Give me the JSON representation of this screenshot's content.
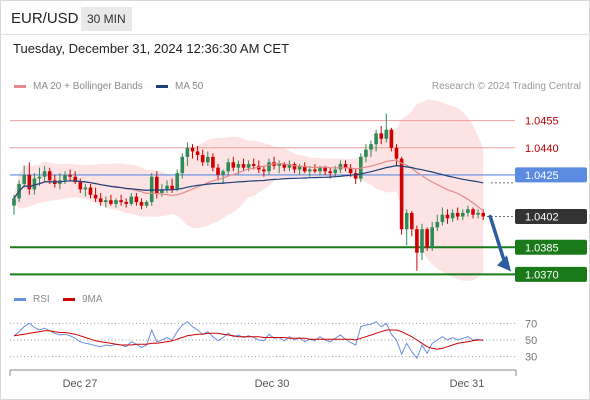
{
  "header": {
    "symbol": "EUR/USD",
    "timeframe": "30 MIN",
    "timestamp": "Tuesday, December 31, 2024 12:36:30 AM CET"
  },
  "legend": {
    "ma20": "MA 20 + Bollinger Bands",
    "ma50": "MA 50",
    "credit": "Research © 2024 Trading Central",
    "rsi": "RSI",
    "nine_ma": "9MA"
  },
  "colors": {
    "candle_up": "#2e8b57",
    "candle_down": "#d10000",
    "ma20": "#e68a8a",
    "ma50": "#1e3f7a",
    "band_fill": "#fde3e3",
    "resistance": "#f0a0a0",
    "support": "#1a7a1a",
    "current_line": "#5b8be0",
    "rsi_line": "#6a8fe0",
    "rsi_ma": "#d10000",
    "arrow": "#2c5d9c"
  },
  "chart_data": {
    "type": "candlestick",
    "instrument": "EUR/USD",
    "timeframe_minutes": 30,
    "x_labels": [
      "Dec 27",
      "Dec 30",
      "Dec 31"
    ],
    "ylim": [
      1.0368,
      1.0462
    ],
    "candles": [
      [
        1.0408,
        1.0414,
        1.0403,
        1.0412
      ],
      [
        1.0412,
        1.0422,
        1.041,
        1.042
      ],
      [
        1.042,
        1.043,
        1.0418,
        1.0425
      ],
      [
        1.0425,
        1.0432,
        1.0414,
        1.0417
      ],
      [
        1.0417,
        1.0426,
        1.0414,
        1.0423
      ],
      [
        1.0423,
        1.0429,
        1.0419,
        1.0424
      ],
      [
        1.0424,
        1.043,
        1.0421,
        1.0427
      ],
      [
        1.0427,
        1.0429,
        1.042,
        1.0422
      ],
      [
        1.0422,
        1.0425,
        1.0418,
        1.042
      ],
      [
        1.042,
        1.0426,
        1.0417,
        1.0422
      ],
      [
        1.0422,
        1.0427,
        1.042,
        1.0425
      ],
      [
        1.0425,
        1.0428,
        1.0422,
        1.0424
      ],
      [
        1.0424,
        1.0427,
        1.042,
        1.0421
      ],
      [
        1.0421,
        1.0423,
        1.0415,
        1.0417
      ],
      [
        1.0417,
        1.042,
        1.0413,
        1.0418
      ],
      [
        1.0418,
        1.042,
        1.0412,
        1.0414
      ],
      [
        1.0414,
        1.0418,
        1.041,
        1.0412
      ],
      [
        1.0412,
        1.0415,
        1.0408,
        1.041
      ],
      [
        1.041,
        1.0413,
        1.0407,
        1.0411
      ],
      [
        1.0411,
        1.0414,
        1.0408,
        1.0409
      ],
      [
        1.0409,
        1.0412,
        1.0407,
        1.0411
      ],
      [
        1.0411,
        1.0414,
        1.0408,
        1.041
      ],
      [
        1.041,
        1.0412,
        1.0407,
        1.0409
      ],
      [
        1.0409,
        1.0415,
        1.0408,
        1.0413
      ],
      [
        1.0413,
        1.0415,
        1.0408,
        1.041
      ],
      [
        1.041,
        1.0412,
        1.0406,
        1.0408
      ],
      [
        1.0408,
        1.0411,
        1.0407,
        1.041
      ],
      [
        1.041,
        1.0426,
        1.0408,
        1.0424
      ],
      [
        1.0424,
        1.0427,
        1.0412,
        1.0415
      ],
      [
        1.0415,
        1.042,
        1.0413,
        1.0417
      ],
      [
        1.0417,
        1.0422,
        1.0415,
        1.0419
      ],
      [
        1.0419,
        1.0423,
        1.0415,
        1.0417
      ],
      [
        1.0417,
        1.0428,
        1.0416,
        1.0426
      ],
      [
        1.0426,
        1.0437,
        1.0423,
        1.0435
      ],
      [
        1.0435,
        1.0443,
        1.043,
        1.044
      ],
      [
        1.044,
        1.0442,
        1.0434,
        1.0438
      ],
      [
        1.0438,
        1.0441,
        1.0433,
        1.0436
      ],
      [
        1.0436,
        1.0439,
        1.043,
        1.0432
      ],
      [
        1.0432,
        1.0438,
        1.043,
        1.0435
      ],
      [
        1.0435,
        1.0437,
        1.0427,
        1.0429
      ],
      [
        1.0429,
        1.0431,
        1.0422,
        1.0425
      ],
      [
        1.0425,
        1.0428,
        1.042,
        1.0427
      ],
      [
        1.0427,
        1.0434,
        1.0425,
        1.0432
      ],
      [
        1.0432,
        1.0435,
        1.0427,
        1.0429
      ],
      [
        1.0429,
        1.0433,
        1.0425,
        1.0431
      ],
      [
        1.0431,
        1.0434,
        1.0427,
        1.0429
      ],
      [
        1.0429,
        1.0433,
        1.0427,
        1.0431
      ],
      [
        1.0431,
        1.0434,
        1.0428,
        1.043
      ],
      [
        1.043,
        1.0433,
        1.0426,
        1.0428
      ],
      [
        1.0428,
        1.043,
        1.0424,
        1.0427
      ],
      [
        1.0427,
        1.0434,
        1.0425,
        1.0432
      ],
      [
        1.0432,
        1.0435,
        1.0428,
        1.043
      ],
      [
        1.043,
        1.0433,
        1.0426,
        1.0431
      ],
      [
        1.0431,
        1.0432,
        1.0427,
        1.0429
      ],
      [
        1.0429,
        1.0433,
        1.0427,
        1.0431
      ],
      [
        1.0431,
        1.0432,
        1.0426,
        1.0428
      ],
      [
        1.0428,
        1.0431,
        1.0425,
        1.043
      ],
      [
        1.043,
        1.0432,
        1.0426,
        1.0427
      ],
      [
        1.0427,
        1.043,
        1.0424,
        1.0428
      ],
      [
        1.0428,
        1.0431,
        1.0426,
        1.0427
      ],
      [
        1.0427,
        1.043,
        1.0425,
        1.0429
      ],
      [
        1.0429,
        1.043,
        1.0425,
        1.0427
      ],
      [
        1.0427,
        1.0429,
        1.0423,
        1.0426
      ],
      [
        1.0426,
        1.043,
        1.0424,
        1.0428
      ],
      [
        1.0428,
        1.0433,
        1.0426,
        1.0431
      ],
      [
        1.0431,
        1.0433,
        1.0427,
        1.0429
      ],
      [
        1.0429,
        1.0431,
        1.0424,
        1.0426
      ],
      [
        1.0426,
        1.0428,
        1.042,
        1.0423
      ],
      [
        1.0423,
        1.0437,
        1.0421,
        1.0435
      ],
      [
        1.0435,
        1.0442,
        1.0432,
        1.0439
      ],
      [
        1.0439,
        1.0444,
        1.0435,
        1.0442
      ],
      [
        1.0442,
        1.045,
        1.0438,
        1.0448
      ],
      [
        1.0448,
        1.0452,
        1.0442,
        1.0445
      ],
      [
        1.0445,
        1.0459,
        1.0443,
        1.045
      ],
      [
        1.045,
        1.0451,
        1.0438,
        1.044
      ],
      [
        1.044,
        1.0442,
        1.043,
        1.0434
      ],
      [
        1.0434,
        1.0435,
        1.0392,
        1.0395
      ],
      [
        1.0395,
        1.0406,
        1.0386,
        1.0404
      ],
      [
        1.0404,
        1.0405,
        1.0391,
        1.0395
      ],
      [
        1.0395,
        1.0397,
        1.0372,
        1.0382
      ],
      [
        1.0382,
        1.0398,
        1.0378,
        1.0395
      ],
      [
        1.0395,
        1.0396,
        1.0383,
        1.0385
      ],
      [
        1.0385,
        1.0399,
        1.0383,
        1.0396
      ],
      [
        1.0396,
        1.0403,
        1.0394,
        1.0399
      ],
      [
        1.0399,
        1.0407,
        1.0397,
        1.0403
      ],
      [
        1.0403,
        1.0406,
        1.0398,
        1.0401
      ],
      [
        1.0401,
        1.0406,
        1.0399,
        1.0404
      ],
      [
        1.0404,
        1.0407,
        1.04,
        1.0402
      ],
      [
        1.0402,
        1.0406,
        1.04,
        1.0404
      ],
      [
        1.0404,
        1.0408,
        1.0402,
        1.0406
      ],
      [
        1.0406,
        1.0407,
        1.0401,
        1.0403
      ],
      [
        1.0403,
        1.0406,
        1.0401,
        1.0404
      ],
      [
        1.0404,
        1.0406,
        1.04,
        1.0402
      ]
    ],
    "levels": [
      {
        "value": "1.0455",
        "kind": "resistance"
      },
      {
        "value": "1.0440",
        "kind": "resistance"
      },
      {
        "value": "1.0425",
        "kind": "pivot"
      },
      {
        "value": "1.0402",
        "kind": "last"
      },
      {
        "value": "1.0385",
        "kind": "support"
      },
      {
        "value": "1.0370",
        "kind": "support"
      }
    ],
    "rsi_ticks": [
      "70",
      "50",
      "30"
    ],
    "rsi_ylim": [
      20,
      80
    ],
    "rsi": [
      55,
      60,
      66,
      70,
      65,
      62,
      64,
      61,
      58,
      56,
      57,
      55,
      52,
      48,
      46,
      45,
      43,
      42,
      44,
      43,
      45,
      44,
      42,
      48,
      45,
      41,
      44,
      62,
      48,
      50,
      53,
      50,
      60,
      68,
      72,
      66,
      62,
      57,
      60,
      54,
      49,
      53,
      58,
      54,
      56,
      53,
      55,
      53,
      50,
      49,
      57,
      52,
      53,
      49,
      54,
      50,
      53,
      48,
      51,
      49,
      54,
      50,
      48,
      52,
      56,
      51,
      47,
      44,
      66,
      68,
      69,
      72,
      66,
      70,
      57,
      50,
      33,
      46,
      36,
      28,
      44,
      34,
      46,
      50,
      54,
      50,
      53,
      50,
      52,
      54,
      50,
      51,
      49
    ],
    "rsi_ma9": [
      55,
      56,
      57,
      58,
      59,
      60,
      61,
      61,
      60,
      59,
      59,
      58,
      57,
      55,
      53,
      51,
      49,
      48,
      47,
      46,
      45,
      44,
      44,
      44,
      45,
      45,
      45,
      46,
      46,
      47,
      48,
      49,
      51,
      53,
      55,
      56,
      57,
      57,
      58,
      58,
      58,
      57,
      56,
      55,
      54,
      54,
      54,
      54,
      54,
      53,
      53,
      53,
      53,
      53,
      52,
      52,
      52,
      52,
      51,
      51,
      51,
      51,
      51,
      51,
      51,
      51,
      51,
      50,
      52,
      54,
      56,
      58,
      60,
      62,
      62,
      62,
      60,
      57,
      54,
      50,
      46,
      42,
      40,
      39,
      40,
      42,
      44,
      46,
      47,
      48,
      49,
      50,
      50
    ]
  }
}
